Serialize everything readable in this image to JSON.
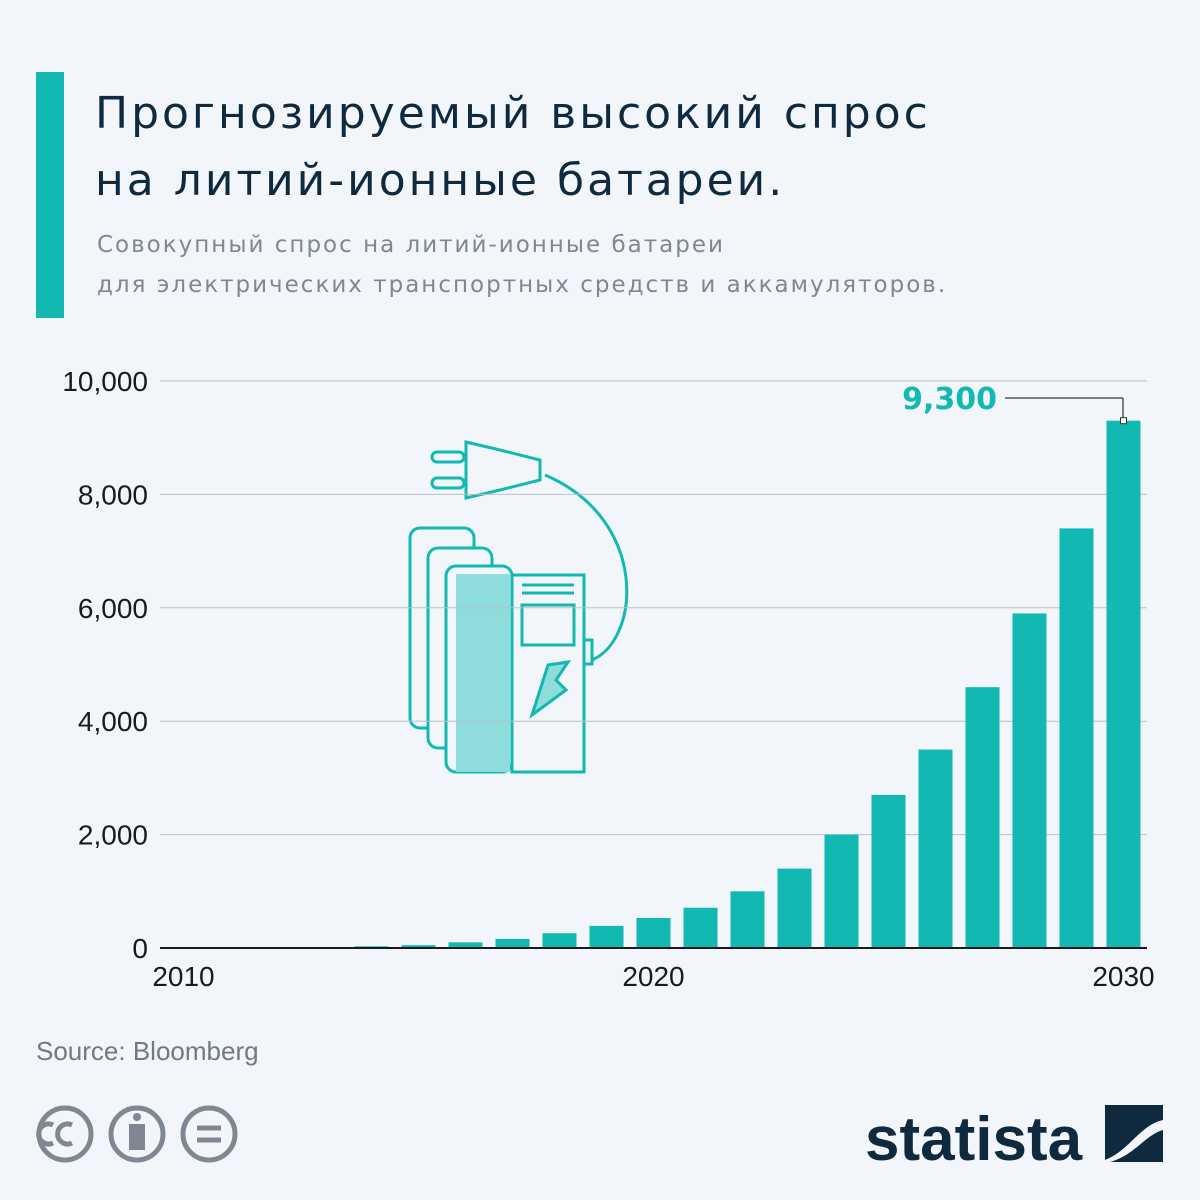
{
  "chart_data": {
    "type": "bar",
    "title_lines": [
      "Прогнозируемый высокий спрос",
      "на литий-ионные батареи."
    ],
    "subtitle_lines": [
      "Совокупный спрос на литий-ионные батареи",
      "для электрических транспортных средств и аккамуляторов."
    ],
    "x": [
      2010,
      2011,
      2012,
      2013,
      2014,
      2015,
      2016,
      2017,
      2018,
      2019,
      2020,
      2021,
      2022,
      2023,
      2024,
      2025,
      2026,
      2027,
      2028,
      2029,
      2030
    ],
    "values": [
      2,
      4,
      6,
      10,
      30,
      50,
      100,
      160,
      260,
      390,
      530,
      710,
      1000,
      1400,
      2000,
      2700,
      3500,
      4600,
      5900,
      7400,
      9300
    ],
    "value_labels": [
      null,
      null,
      null,
      null,
      null,
      null,
      null,
      null,
      null,
      null,
      null,
      null,
      null,
      null,
      null,
      null,
      null,
      null,
      null,
      null,
      "9,300"
    ],
    "color": "#12b8b2",
    "xlim": [
      2009.5,
      2030.5
    ],
    "xticks": [
      2010,
      2020,
      2030
    ],
    "ylim": [
      0,
      10000
    ],
    "yticks": [
      0,
      {
        "value": 2000,
        "label": "2,000"
      },
      {
        "value": 4000,
        "label": "4,000"
      },
      {
        "value": 6000,
        "label": "6,000"
      },
      {
        "value": 8000,
        "label": "8,000"
      },
      {
        "value": 10000,
        "label": "10,000"
      }
    ],
    "grid": true,
    "source": "Source: Bloomberg",
    "logo": "statista"
  }
}
